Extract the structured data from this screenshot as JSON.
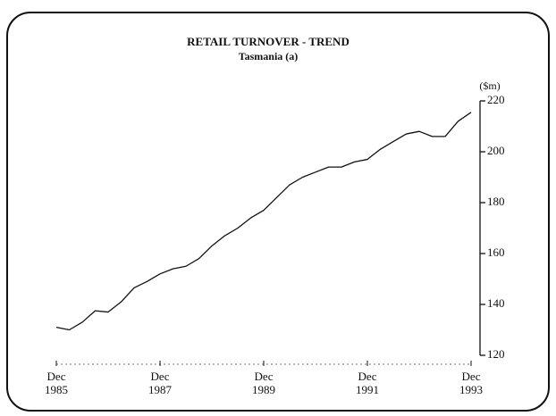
{
  "chart_data": {
    "type": "line",
    "title": "RETAIL TURNOVER - TREND",
    "subtitle": "Tasmania (a)",
    "y_label": "($m)",
    "x": [
      1985.92,
      1986.17,
      1986.42,
      1986.67,
      1986.92,
      1987.17,
      1987.42,
      1987.67,
      1987.92,
      1988.17,
      1988.42,
      1988.67,
      1988.92,
      1989.17,
      1989.42,
      1989.67,
      1989.92,
      1990.17,
      1990.42,
      1990.67,
      1990.92,
      1991.17,
      1991.42,
      1991.67,
      1991.92,
      1992.17,
      1992.42,
      1992.67,
      1992.92,
      1993.17,
      1993.42,
      1993.67,
      1993.92
    ],
    "series": [
      {
        "name": "Retail turnover",
        "color": "#111111",
        "values": [
          131,
          130,
          133,
          137.5,
          137,
          141,
          146.5,
          149,
          152,
          154,
          155,
          158,
          163,
          167,
          170,
          174,
          177,
          182,
          187,
          190,
          192,
          194,
          194,
          196,
          197,
          201,
          204,
          207,
          208,
          206,
          206,
          212,
          215.5
        ]
      }
    ],
    "xlim": [
      1985.92,
      1993.92
    ],
    "xticks": [
      {
        "value": 1985.92,
        "label": "Dec 1985"
      },
      {
        "value": 1987.92,
        "label": "Dec 1987"
      },
      {
        "value": 1989.92,
        "label": "Dec 1989"
      },
      {
        "value": 1991.92,
        "label": "Dec 1991"
      },
      {
        "value": 1993.92,
        "label": "Dec 1993"
      }
    ],
    "ylim": [
      120,
      220
    ],
    "yticks": [
      120,
      140,
      160,
      180,
      200,
      220
    ],
    "y_axis_side": "right"
  }
}
